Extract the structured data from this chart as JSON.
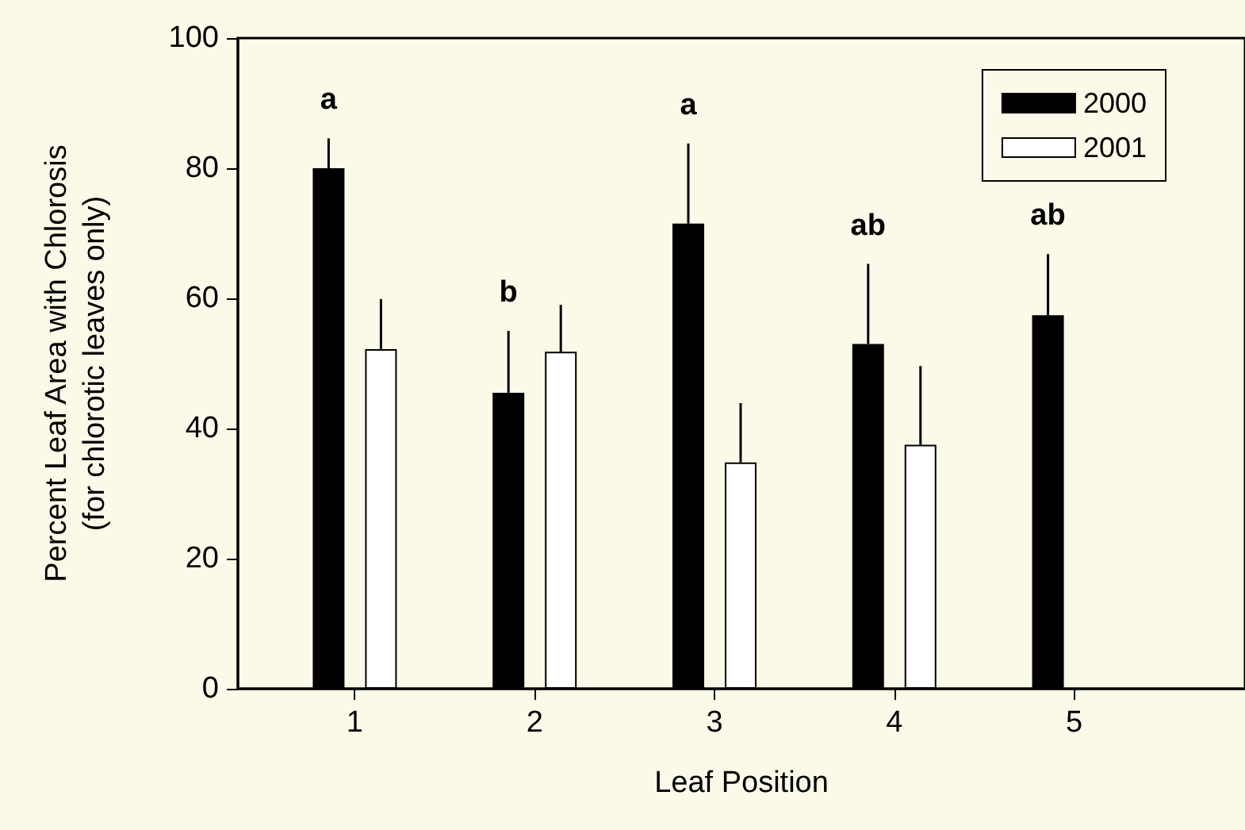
{
  "chart_data": {
    "type": "bar",
    "xlabel": "Leaf Position",
    "ylabel": "Percent Leaf Area with Chlorosis\n(for chlorotic leaves only)",
    "x": [
      1,
      2,
      3,
      4,
      5
    ],
    "xlim": [
      0.35,
      5.95
    ],
    "xticks": [
      1,
      2,
      3,
      4,
      5
    ],
    "ylim": [
      0,
      100
    ],
    "yticks": [
      0,
      20,
      40,
      60,
      80,
      100
    ],
    "grid": false,
    "legend": "top right",
    "series": [
      {
        "name": "2000",
        "color": "#000000",
        "values": [
          80,
          45.5,
          71.5,
          53,
          57.4
        ],
        "errors": [
          [
            80,
            84.6
          ],
          [
            45.5,
            55
          ],
          [
            71.5,
            83.8
          ],
          [
            53,
            65.3
          ],
          [
            57.4,
            66.8
          ]
        ]
      },
      {
        "name": "2001",
        "color": "#ffffff",
        "values": [
          52.2,
          51.8,
          34.8,
          37.5,
          null
        ],
        "errors": [
          [
            52.2,
            59.9
          ],
          [
            51.8,
            59
          ],
          [
            34.8,
            43.9
          ],
          [
            37.5,
            49.6
          ],
          null
        ]
      }
    ],
    "annotations": [
      "a",
      "b",
      "a",
      "ab",
      "ab"
    ]
  }
}
